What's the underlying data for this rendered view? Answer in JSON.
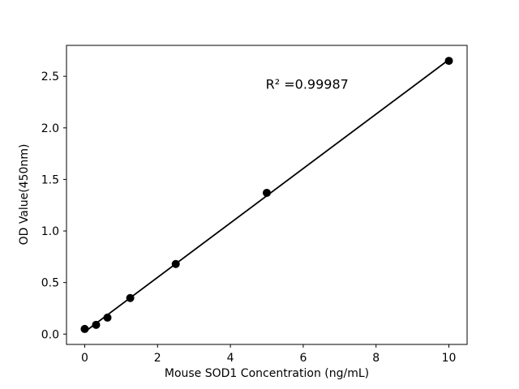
{
  "figure": {
    "background_color": "#ffffff",
    "foreground_color": "#000000"
  },
  "chart_data": {
    "type": "scatter",
    "title": "",
    "xlabel": "Mouse SOD1 Concentration (ng/mL)",
    "ylabel": "OD Value(450nm)",
    "x": [
      0,
      0.3125,
      0.625,
      1.25,
      2.5,
      5,
      10
    ],
    "y": [
      0.05,
      0.09,
      0.16,
      0.35,
      0.68,
      1.37,
      2.65
    ],
    "fit": {
      "type": "linear",
      "r_squared": 0.99987,
      "annotation_text": "R² =0.99987",
      "annotation_x": 4.97,
      "annotation_y": 2.42,
      "line_x_start": 0,
      "line_x_end": 10
    },
    "xlim": [
      -0.5,
      10.5
    ],
    "ylim": [
      -0.1,
      2.8
    ],
    "xticks": [
      0,
      2,
      4,
      6,
      8,
      10
    ],
    "xtick_labels": [
      "0",
      "2",
      "4",
      "6",
      "8",
      "10"
    ],
    "yticks": [
      0,
      0.5,
      1.0,
      1.5,
      2.0,
      2.5
    ],
    "ytick_labels": [
      "0.0",
      "0.5",
      "1.0",
      "1.5",
      "2.0",
      "2.5"
    ],
    "grid": false,
    "legend": null,
    "marker_color": "#000000",
    "marker_radius": 5,
    "line_color": "#000000",
    "line_width": 1.8,
    "axis_color": "#000000"
  }
}
